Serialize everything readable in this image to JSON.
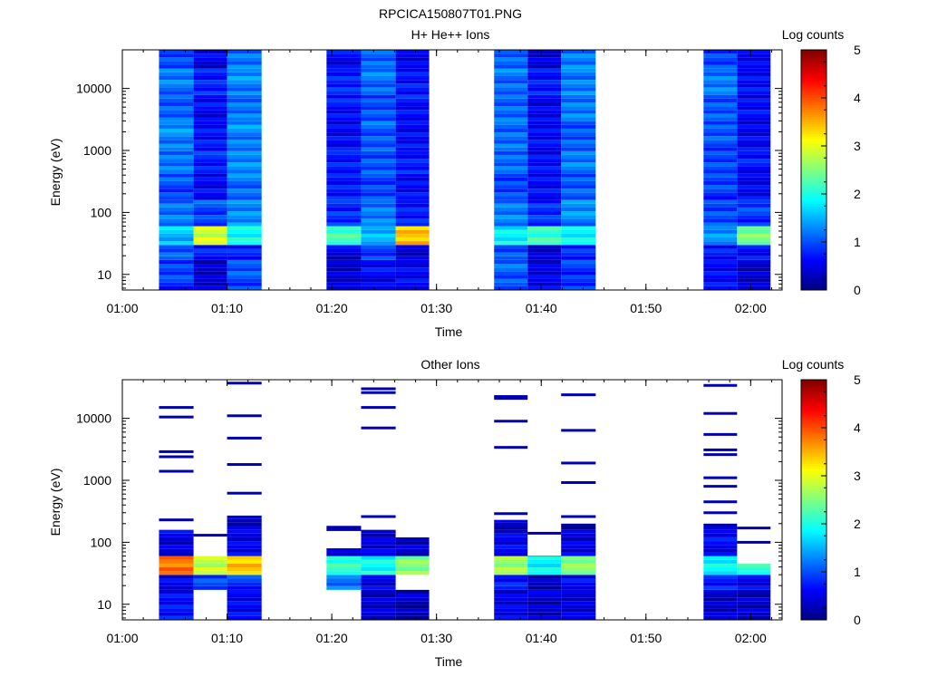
{
  "figure": {
    "title": "RPCICA150807T01.PNG"
  },
  "chart_data": [
    {
      "type": "heatmap",
      "title": "H+ He++ Ions",
      "xlabel": "Time",
      "ylabel": "Energy (eV)",
      "y_scale": "log",
      "x_ticks": [
        "01:00",
        "01:10",
        "01:20",
        "01:30",
        "01:40",
        "01:50",
        "02:00"
      ],
      "y_ticks": [
        "10",
        "100",
        "1000",
        "10000"
      ],
      "colorbar": {
        "label": "Log counts",
        "ticks": [
          "0",
          "1",
          "2",
          "3",
          "4",
          "5"
        ],
        "range": [
          0,
          5
        ]
      },
      "columns": [
        {
          "t_start": "01:03.5",
          "t_end": "01:06.8",
          "profile": [
            0.9,
            1.1,
            1.6,
            1.2,
            1.0,
            1.2,
            1.3,
            1.1,
            1.2,
            1.0
          ]
        },
        {
          "t_start": "01:06.8",
          "t_end": "01:10.0",
          "profile": [
            0.4,
            0.7,
            2.9,
            1.0,
            0.6,
            0.8,
            0.7,
            0.6,
            0.8,
            0.5
          ]
        },
        {
          "t_start": "01:10.0",
          "t_end": "01:13.3",
          "profile": [
            1.0,
            0.8,
            2.0,
            1.3,
            1.2,
            1.3,
            1.3,
            1.2,
            1.3,
            1.2
          ]
        },
        {
          "t_start": "01:19.5",
          "t_end": "01:22.8",
          "profile": [
            0.4,
            0.5,
            2.2,
            0.9,
            0.7,
            0.8,
            0.6,
            0.7,
            0.8,
            0.6
          ]
        },
        {
          "t_start": "01:22.8",
          "t_end": "01:26.1",
          "profile": [
            0.6,
            0.9,
            1.6,
            1.2,
            1.0,
            1.0,
            1.1,
            1.0,
            1.2,
            1.1
          ]
        },
        {
          "t_start": "01:26.1",
          "t_end": "01:29.3",
          "profile": [
            0.6,
            0.5,
            3.4,
            0.8,
            0.6,
            0.8,
            0.6,
            0.7,
            0.7,
            0.6
          ]
        },
        {
          "t_start": "01:35.5",
          "t_end": "01:38.7",
          "profile": [
            1.1,
            1.0,
            1.9,
            1.2,
            1.0,
            1.1,
            1.2,
            1.1,
            1.2,
            1.1
          ]
        },
        {
          "t_start": "01:38.7",
          "t_end": "01:41.9",
          "profile": [
            0.5,
            0.5,
            2.1,
            0.9,
            0.6,
            0.7,
            0.6,
            0.6,
            0.7,
            0.5
          ]
        },
        {
          "t_start": "01:41.9",
          "t_end": "01:45.2",
          "profile": [
            0.9,
            0.8,
            1.9,
            1.3,
            1.1,
            1.2,
            1.1,
            1.2,
            1.3,
            1.2
          ]
        },
        {
          "t_start": "01:55.5",
          "t_end": "01:58.7",
          "profile": [
            0.6,
            0.8,
            1.3,
            1.0,
            0.9,
            1.0,
            1.0,
            1.1,
            1.2,
            1.0
          ]
        },
        {
          "t_start": "01:58.7",
          "t_end": "02:01.9",
          "profile": [
            0.4,
            0.6,
            2.5,
            0.9,
            0.6,
            0.7,
            0.6,
            0.6,
            0.7,
            0.5
          ]
        }
      ]
    },
    {
      "type": "heatmap",
      "title": "Other Ions",
      "xlabel": "Time",
      "ylabel": "Energy (eV)",
      "y_scale": "log",
      "x_ticks": [
        "01:00",
        "01:10",
        "01:20",
        "01:30",
        "01:40",
        "01:50",
        "02:00"
      ],
      "y_ticks": [
        "10",
        "100",
        "1000",
        "10000"
      ],
      "colorbar": {
        "label": "Log counts",
        "ticks": [
          "0",
          "1",
          "2",
          "3",
          "4",
          "5"
        ],
        "range": [
          0,
          5
        ]
      },
      "columns": [
        {
          "t_start": "01:03.5",
          "t_end": "01:06.8",
          "profile": [
            0.7,
            0.5,
            3.8,
            0.5,
            0.0,
            0.0,
            0.0,
            0.0,
            0.0,
            0.0
          ],
          "top_eV": 200,
          "sparse_lines_eV": [
            230,
            1400,
            2400,
            2900,
            10500,
            15000
          ]
        },
        {
          "t_start": "01:06.8",
          "t_end": "01:10.0",
          "profile": [
            0.0,
            1.0,
            2.9,
            0.0,
            0.0,
            0.0,
            0.0,
            0.0,
            0.0,
            0.0
          ],
          "top_eV": 60,
          "sparse_lines_eV": [
            130
          ]
        },
        {
          "t_start": "01:10.0",
          "t_end": "01:13.3",
          "profile": [
            0.6,
            0.9,
            3.4,
            0.6,
            0.3,
            0.0,
            0.0,
            0.0,
            0.0,
            0.0
          ],
          "top_eV": 270,
          "sparse_lines_eV": [
            620,
            1800,
            4800,
            11000,
            37000
          ]
        },
        {
          "t_start": "01:19.5",
          "t_end": "01:22.8",
          "profile": [
            0.0,
            1.2,
            2.2,
            0.3,
            0.0,
            0.0,
            0.0,
            0.0,
            0.0,
            0.0
          ],
          "top_eV": 80,
          "sparse_lines_eV": [
            160,
            175
          ]
        },
        {
          "t_start": "01:22.8",
          "t_end": "01:26.1",
          "profile": [
            0.4,
            0.6,
            1.9,
            0.5,
            0.0,
            0.0,
            0.0,
            0.0,
            0.0,
            0.0
          ],
          "top_eV": 200,
          "sparse_lines_eV": [
            260,
            7000,
            15000,
            26000,
            30000
          ]
        },
        {
          "t_start": "01:26.1",
          "t_end": "01:29.3",
          "profile": [
            0.3,
            0.0,
            2.6,
            0.3,
            0.0,
            0.0,
            0.0,
            0.0,
            0.0,
            0.0
          ],
          "top_eV": 120,
          "sparse_lines_eV": []
        },
        {
          "t_start": "01:35.5",
          "t_end": "01:38.7",
          "profile": [
            0.5,
            0.8,
            2.6,
            0.6,
            0.3,
            0.0,
            0.0,
            0.0,
            0.0,
            0.0
          ],
          "top_eV": 230,
          "sparse_lines_eV": [
            290,
            3400,
            9000,
            21000,
            22500
          ]
        },
        {
          "t_start": "01:38.7",
          "t_end": "01:41.9",
          "profile": [
            0.4,
            0.3,
            1.9,
            0.3,
            0.0,
            0.0,
            0.0,
            0.0,
            0.0,
            0.0
          ],
          "top_eV": 60,
          "sparse_lines_eV": [
            140
          ]
        },
        {
          "t_start": "01:41.9",
          "t_end": "01:45.2",
          "profile": [
            0.4,
            0.7,
            2.5,
            0.5,
            0.3,
            0.0,
            0.0,
            0.0,
            0.0,
            0.0
          ],
          "top_eV": 200,
          "sparse_lines_eV": [
            260,
            920,
            1900,
            6400,
            24000
          ]
        },
        {
          "t_start": "01:55.5",
          "t_end": "01:58.7",
          "profile": [
            0.4,
            0.7,
            1.9,
            0.6,
            0.3,
            0.0,
            0.0,
            0.0,
            0.0,
            0.0
          ],
          "top_eV": 200,
          "sparse_lines_eV": [
            300,
            450,
            800,
            1100,
            2600,
            3100,
            5500,
            12000,
            34000
          ]
        },
        {
          "t_start": "01:58.7",
          "t_end": "02:01.9",
          "profile": [
            0.3,
            0.6,
            2.2,
            0.3,
            0.0,
            0.0,
            0.0,
            0.0,
            0.0,
            0.0
          ],
          "top_eV": 45,
          "sparse_lines_eV": [
            100,
            170
          ]
        }
      ]
    }
  ]
}
